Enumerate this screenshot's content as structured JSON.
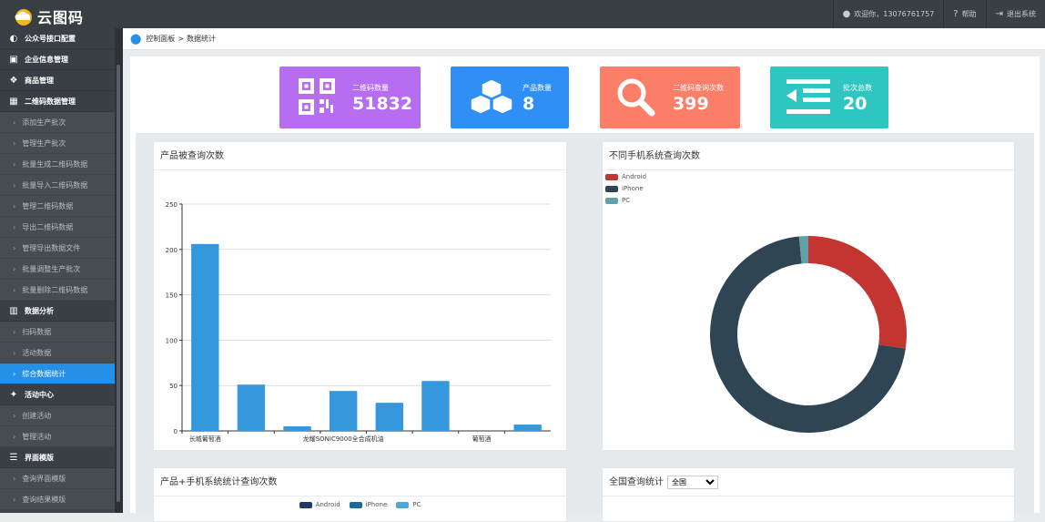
{
  "app": {
    "logo_text": "云图码"
  },
  "topbar": {
    "welcome": "欢迎你，13076761757",
    "help": "帮助",
    "logout": "退出系统"
  },
  "sidebar": {
    "groups": [
      {
        "label": "公众号接口配置",
        "icon": "wechat-icon"
      },
      {
        "label": "企业信息管理",
        "icon": "id-card-icon"
      },
      {
        "label": "商品管理",
        "icon": "cubes-icon"
      },
      {
        "label": "二维码数据管理",
        "icon": "qrcode-icon"
      }
    ],
    "qr_items": [
      "添加生产批次",
      "管理生产批次",
      "批量生成二维码数据",
      "批量导入二维码数据",
      "管理二维码数据",
      "导出二维码数据",
      "管理导出数据文件",
      "批量调整生产批次",
      "批量删除二维码数据"
    ],
    "analysis_group": {
      "label": "数据分析",
      "icon": "bar-chart-icon"
    },
    "analysis_items": [
      "扫码数据",
      "活动数据",
      "综合数据统计"
    ],
    "activity_group": {
      "label": "活动中心",
      "icon": "dropbox-icon"
    },
    "activity_items": [
      "创建活动",
      "管理活动"
    ],
    "template_group": {
      "label": "界面模版",
      "icon": "database-icon"
    },
    "template_items": [
      "查询界面模版",
      "查询结果模版"
    ]
  },
  "breadcrumb": {
    "home": "控制面板",
    "sep": ">",
    "current": "数据统计"
  },
  "stats": [
    {
      "label": "二维码数量",
      "value": "51832",
      "color": "#b66df0",
      "icon": "qrcode-icon"
    },
    {
      "label": "产品数量",
      "value": "8",
      "color": "#2f8ff5",
      "icon": "cubes-icon"
    },
    {
      "label": "二维码查询次数",
      "value": "399",
      "color": "#fa7e68",
      "icon": "search-icon"
    },
    {
      "label": "批次总数",
      "value": "20",
      "color": "#2fc6c2",
      "icon": "list-indent-icon"
    }
  ],
  "panels": {
    "product_queries": "产品被查询次数",
    "os_queries": "不同手机系统查询次数",
    "product_os": "产品+手机系统统计查询次数",
    "national": "全国查询统计",
    "region_selected": "全国"
  },
  "chart_data": [
    {
      "type": "bar",
      "categories": [
        "长城葡萄酒",
        "",
        "",
        "龙耀SONIC9000全合成机油",
        "",
        "",
        "葡萄酒",
        ""
      ],
      "values": [
        206,
        51,
        5,
        44,
        31,
        55,
        0,
        7
      ],
      "ylim": [
        0,
        250
      ],
      "yticks": [
        0,
        50,
        100,
        150,
        200,
        250
      ],
      "color": "#3598dc",
      "grid": true
    },
    {
      "type": "pie",
      "donut": true,
      "labels": [
        "Android",
        "iPhone",
        "PC"
      ],
      "values": [
        109,
        284,
        6
      ],
      "colors": [
        "#c23531",
        "#2f4554",
        "#61a0a8"
      ],
      "legend": "top-left"
    }
  ],
  "product_os_legend": [
    {
      "name": "Android",
      "color": "#1f3a63"
    },
    {
      "name": "iPhone",
      "color": "#17699e"
    },
    {
      "name": "PC",
      "color": "#4aa7dc"
    }
  ]
}
